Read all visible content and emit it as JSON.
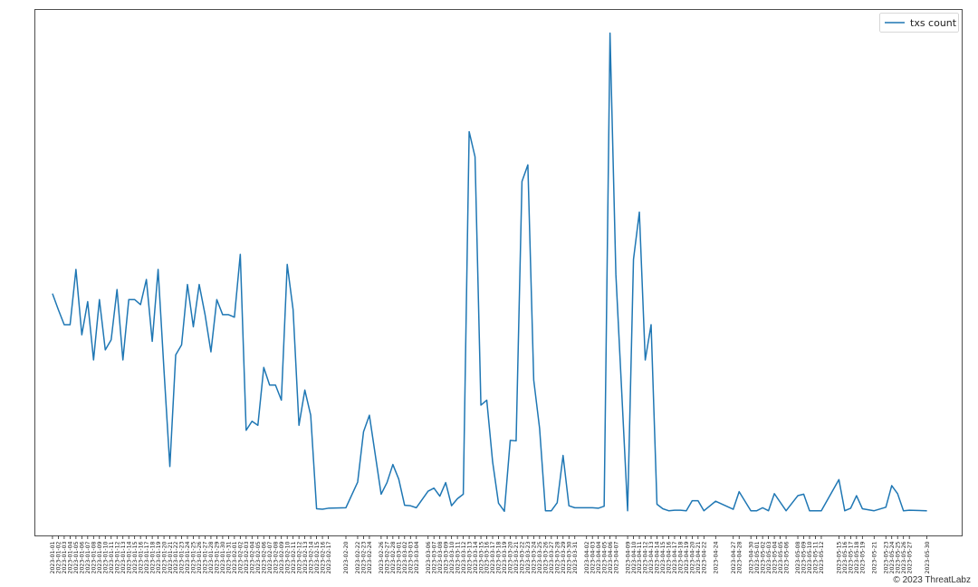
{
  "chart_data": {
    "type": "line",
    "title": "",
    "xlabel": "",
    "ylabel": "",
    "xlim": [
      "2022-12-29",
      "2023-06-05"
    ],
    "ylim": [
      0,
      104.7
    ],
    "y_units": "relative (no y-axis labels printed; peak = 100)",
    "grid": false,
    "legend_position": "top-right",
    "line_color": "#1f77b4",
    "x": [
      "2023-01-01",
      "2023-01-02",
      "2023-01-03",
      "2023-01-04",
      "2023-01-05",
      "2023-01-06",
      "2023-01-07",
      "2023-01-08",
      "2023-01-09",
      "2023-01-10",
      "2023-01-11",
      "2023-01-12",
      "2023-01-13",
      "2023-01-14",
      "2023-01-15",
      "2023-01-16",
      "2023-01-17",
      "2023-01-18",
      "2023-01-19",
      "2023-01-20",
      "2023-01-21",
      "2023-01-22",
      "2023-01-23",
      "2023-01-24",
      "2023-01-25",
      "2023-01-26",
      "2023-01-27",
      "2023-01-28",
      "2023-01-29",
      "2023-01-30",
      "2023-01-31",
      "2023-02-01",
      "2023-02-02",
      "2023-02-03",
      "2023-02-04",
      "2023-02-05",
      "2023-02-06",
      "2023-02-07",
      "2023-02-08",
      "2023-02-09",
      "2023-02-10",
      "2023-02-11",
      "2023-02-12",
      "2023-02-13",
      "2023-02-14",
      "2023-02-15",
      "2023-02-16",
      "2023-02-17",
      "2023-02-20",
      "2023-02-22",
      "2023-02-23",
      "2023-02-24",
      "2023-02-26",
      "2023-02-27",
      "2023-02-28",
      "2023-03-01",
      "2023-03-02",
      "2023-03-03",
      "2023-03-04",
      "2023-03-06",
      "2023-03-07",
      "2023-03-08",
      "2023-03-09",
      "2023-03-10",
      "2023-03-11",
      "2023-03-12",
      "2023-03-13",
      "2023-03-14",
      "2023-03-15",
      "2023-03-16",
      "2023-03-17",
      "2023-03-18",
      "2023-03-19",
      "2023-03-20",
      "2023-03-21",
      "2023-03-22",
      "2023-03-23",
      "2023-03-24",
      "2023-03-25",
      "2023-03-26",
      "2023-03-27",
      "2023-03-28",
      "2023-03-29",
      "2023-03-30",
      "2023-03-31",
      "2023-04-02",
      "2023-04-03",
      "2023-04-04",
      "2023-04-05",
      "2023-04-06",
      "2023-04-07",
      "2023-04-09",
      "2023-04-10",
      "2023-04-11",
      "2023-04-12",
      "2023-04-13",
      "2023-04-14",
      "2023-04-15",
      "2023-04-16",
      "2023-04-17",
      "2023-04-18",
      "2023-04-19",
      "2023-04-20",
      "2023-04-21",
      "2023-04-22",
      "2023-04-24",
      "2023-04-27",
      "2023-04-28",
      "2023-04-30",
      "2023-05-01",
      "2023-05-02",
      "2023-05-03",
      "2023-05-04",
      "2023-05-05",
      "2023-05-06",
      "2023-05-08",
      "2023-05-09",
      "2023-05-10",
      "2023-05-11",
      "2023-05-12",
      "2023-05-15",
      "2023-05-16",
      "2023-05-17",
      "2023-05-18",
      "2023-05-19",
      "2023-05-21",
      "2023-05-23",
      "2023-05-24",
      "2023-05-25",
      "2023-05-26",
      "2023-05-27",
      "2023-05-30"
    ],
    "series": [
      {
        "name": "txs count",
        "values": [
          48.2,
          45,
          42,
          42,
          53,
          40,
          46.6,
          35,
          47,
          37,
          39,
          49,
          35,
          47,
          47,
          46,
          51,
          38.7,
          53,
          33,
          13.8,
          36,
          38,
          50,
          41.6,
          50,
          44,
          36.6,
          47,
          44,
          44,
          43.5,
          56,
          21,
          22.8,
          22,
          33.5,
          30,
          30,
          27,
          54,
          45,
          22,
          29,
          24,
          5.4,
          5.3,
          5.5,
          5.6,
          10.7,
          20.7,
          24,
          8.3,
          10.6,
          14.2,
          11.3,
          6.1,
          6,
          5.6,
          8.9,
          9.5,
          7.9,
          10.6,
          6,
          7.4,
          8.3,
          80.4,
          75.4,
          26,
          27,
          14.7,
          6.5,
          4.9,
          19,
          18.9,
          70.5,
          73.8,
          31,
          21.4,
          5,
          5,
          6.6,
          16,
          6,
          5.6,
          5.6,
          5.6,
          5.5,
          5.9,
          100,
          52,
          5,
          55,
          64.4,
          35,
          42,
          6.3,
          5.4,
          5,
          5.1,
          5.1,
          5,
          7,
          7,
          5,
          6.9,
          5.3,
          8.8,
          5,
          5,
          5.6,
          5,
          8.4,
          6.7,
          5,
          8,
          8.3,
          5,
          5,
          5,
          11.2,
          5,
          5.5,
          8,
          5.4,
          5,
          5.7,
          10,
          8.4,
          5,
          5.1,
          5
        ]
      }
    ]
  },
  "watermark": "© 2023 ThreatLabz"
}
